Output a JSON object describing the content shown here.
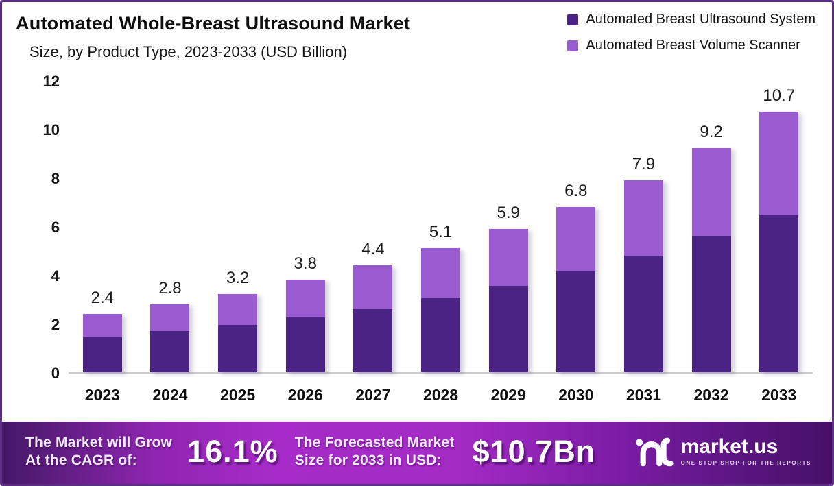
{
  "page": {
    "title": "Automated Whole-Breast Ultrasound Market",
    "subtitle": "Size, by Product Type, 2023-2033 (USD Billion)"
  },
  "legend": [
    {
      "label": "Automated Breast Ultrasound System",
      "color": "#4a2385"
    },
    {
      "label": "Automated Breast Volume Scanner",
      "color": "#9a5ad0"
    }
  ],
  "chart_data": {
    "type": "bar",
    "stacked": true,
    "title": "Automated Whole-Breast Ultrasound Market Size, by Product Type, 2023-2033 (USD Billion)",
    "categories": [
      "2023",
      "2024",
      "2025",
      "2026",
      "2027",
      "2028",
      "2029",
      "2030",
      "2031",
      "2032",
      "2033"
    ],
    "series": [
      {
        "name": "Automated Breast Ultrasound System",
        "color": "#4a2385",
        "values": [
          1.45,
          1.7,
          1.95,
          2.25,
          2.6,
          3.05,
          3.55,
          4.15,
          4.8,
          5.6,
          6.45
        ]
      },
      {
        "name": "Automated Breast Volume Scanner",
        "color": "#9a5ad0",
        "values": [
          0.95,
          1.1,
          1.25,
          1.55,
          1.8,
          2.05,
          2.35,
          2.65,
          3.1,
          3.6,
          4.25
        ]
      }
    ],
    "totals": [
      "2.4",
      "2.8",
      "3.2",
      "3.8",
      "4.4",
      "5.1",
      "5.9",
      "6.8",
      "7.9",
      "9.2",
      "10.7"
    ],
    "xlabel": "",
    "ylabel": "",
    "ylim": [
      0,
      12
    ],
    "yticks": [
      0,
      2,
      4,
      6,
      8,
      10,
      12
    ],
    "grid": false,
    "legend_position": "top-right"
  },
  "banner": {
    "cagr_label_line1": "The Market will Grow",
    "cagr_label_line2": "At the CAGR of:",
    "cagr_value": "16.1%",
    "forecast_label_line1": "The Forecasted Market",
    "forecast_label_line2": "Size for 2033 in USD:",
    "forecast_value": "$10.7Bn",
    "brand_name": "market.us",
    "brand_tagline": "ONE STOP SHOP FOR THE REPORTS"
  },
  "colors": {
    "series_dark": "#4a2385",
    "series_light": "#9a5ad0",
    "banner_bright": "#a62bc8",
    "banner_dark": "#441866",
    "page_border": "#5b2d83",
    "axis_line": "#cccccc"
  }
}
